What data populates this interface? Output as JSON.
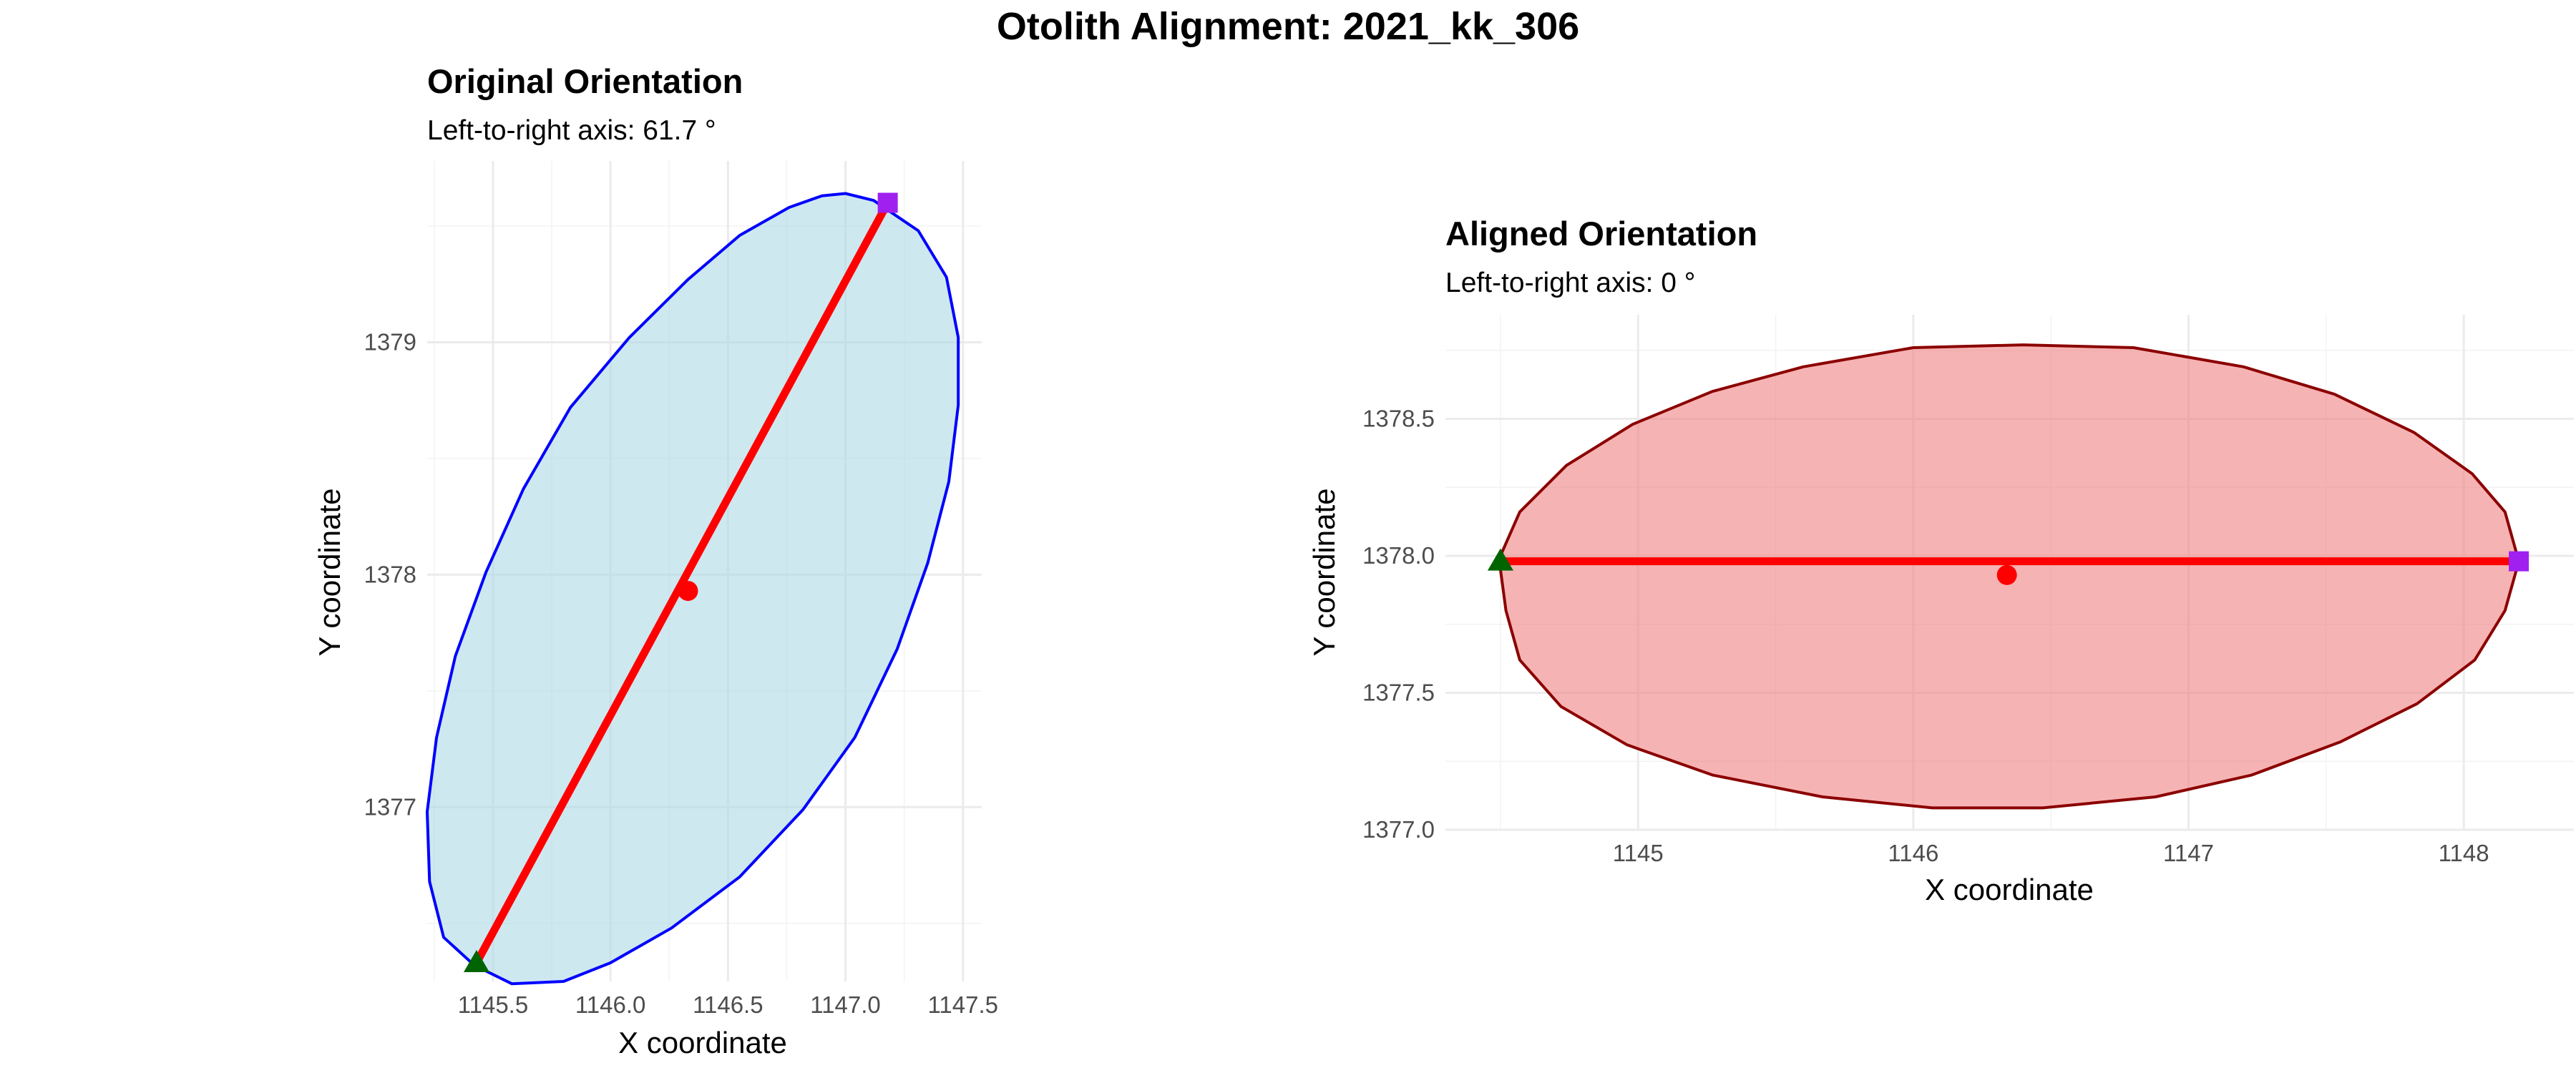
{
  "title": "Otolith Alignment: 2021_kk_306",
  "colors": {
    "axis_line": "#ff0000",
    "centroid": "#ff0000",
    "left_marker": "#006400",
    "right_marker": "#a020f0"
  },
  "chart_data": [
    {
      "type": "scatter",
      "title": "Original Orientation",
      "subtitle": "Left-to-right axis: 61.7 °",
      "xlabel": "X coordinate",
      "ylabel": "Y coordinate",
      "xlim": [
        1145.22,
        1147.58
      ],
      "ylim": [
        1376.25,
        1379.78
      ],
      "xticks": [
        1145.5,
        1146.0,
        1146.5,
        1147.0,
        1147.5
      ],
      "xtick_labels": [
        "1145.5",
        "1146.0",
        "1146.5",
        "1147.0",
        "1147.5"
      ],
      "yticks": [
        1377,
        1378,
        1379
      ],
      "ytick_labels": [
        "1377",
        "1378",
        "1379"
      ],
      "grid": true,
      "outline_fill": "#add8e6",
      "outline_fill_opacity": 0.6,
      "outline_stroke": "#0000ff",
      "outline": [
        [
          1147.0,
          1379.64
        ],
        [
          1147.12,
          1379.61
        ],
        [
          1147.31,
          1379.48
        ],
        [
          1147.43,
          1379.28
        ],
        [
          1147.48,
          1379.02
        ],
        [
          1147.48,
          1378.73
        ],
        [
          1147.44,
          1378.4
        ],
        [
          1147.35,
          1378.05
        ],
        [
          1147.22,
          1377.68
        ],
        [
          1147.04,
          1377.3
        ],
        [
          1146.82,
          1376.99
        ],
        [
          1146.55,
          1376.7
        ],
        [
          1146.26,
          1376.48
        ],
        [
          1146.0,
          1376.33
        ],
        [
          1145.8,
          1376.25
        ],
        [
          1145.58,
          1376.24
        ],
        [
          1145.42,
          1376.32
        ],
        [
          1145.29,
          1376.44
        ],
        [
          1145.23,
          1376.68
        ],
        [
          1145.22,
          1376.98
        ],
        [
          1145.26,
          1377.3
        ],
        [
          1145.34,
          1377.65
        ],
        [
          1145.47,
          1378.01
        ],
        [
          1145.63,
          1378.37
        ],
        [
          1145.83,
          1378.72
        ],
        [
          1146.08,
          1379.02
        ],
        [
          1146.33,
          1379.27
        ],
        [
          1146.55,
          1379.46
        ],
        [
          1146.76,
          1379.58
        ],
        [
          1146.9,
          1379.63
        ]
      ],
      "left_point": [
        1145.43,
        1376.33
      ],
      "right_point": [
        1147.18,
        1379.6
      ],
      "centroid": [
        1146.33,
        1377.93
      ]
    },
    {
      "type": "scatter",
      "title": "Aligned Orientation",
      "subtitle": "Left-to-right axis: 0 °",
      "xlabel": "X coordinate",
      "ylabel": "Y coordinate",
      "xlim": [
        1144.3,
        1148.4
      ],
      "ylim": [
        1377.0,
        1378.88
      ],
      "xticks": [
        1145,
        1146,
        1147,
        1148
      ],
      "xtick_labels": [
        "1145",
        "1146",
        "1147",
        "1148"
      ],
      "yticks": [
        1377.0,
        1377.5,
        1378.0,
        1378.5
      ],
      "ytick_labels": [
        "1377.0",
        "1377.5",
        "1378.0",
        "1378.5"
      ],
      "grid": true,
      "outline_fill": "#f08080",
      "outline_fill_opacity": 0.6,
      "outline_stroke": "#8b0000",
      "outline": [
        [
          1144.5,
          1378.0
        ],
        [
          1144.57,
          1378.16
        ],
        [
          1144.74,
          1378.33
        ],
        [
          1144.98,
          1378.48
        ],
        [
          1145.27,
          1378.6
        ],
        [
          1145.6,
          1378.69
        ],
        [
          1146.0,
          1378.76
        ],
        [
          1146.4,
          1378.77
        ],
        [
          1146.8,
          1378.76
        ],
        [
          1147.2,
          1378.69
        ],
        [
          1147.53,
          1378.59
        ],
        [
          1147.82,
          1378.45
        ],
        [
          1148.03,
          1378.3
        ],
        [
          1148.15,
          1378.16
        ],
        [
          1148.2,
          1377.98
        ],
        [
          1148.15,
          1377.8
        ],
        [
          1148.04,
          1377.62
        ],
        [
          1147.83,
          1377.46
        ],
        [
          1147.55,
          1377.32
        ],
        [
          1147.23,
          1377.2
        ],
        [
          1146.88,
          1377.12
        ],
        [
          1146.47,
          1377.08
        ],
        [
          1146.07,
          1377.08
        ],
        [
          1145.67,
          1377.12
        ],
        [
          1145.27,
          1377.2
        ],
        [
          1144.96,
          1377.31
        ],
        [
          1144.72,
          1377.45
        ],
        [
          1144.57,
          1377.62
        ],
        [
          1144.52,
          1377.8
        ],
        [
          1144.5,
          1377.95
        ]
      ],
      "left_point": [
        1144.5,
        1377.98
      ],
      "right_point": [
        1148.2,
        1377.98
      ],
      "centroid": [
        1146.34,
        1377.93
      ]
    }
  ]
}
